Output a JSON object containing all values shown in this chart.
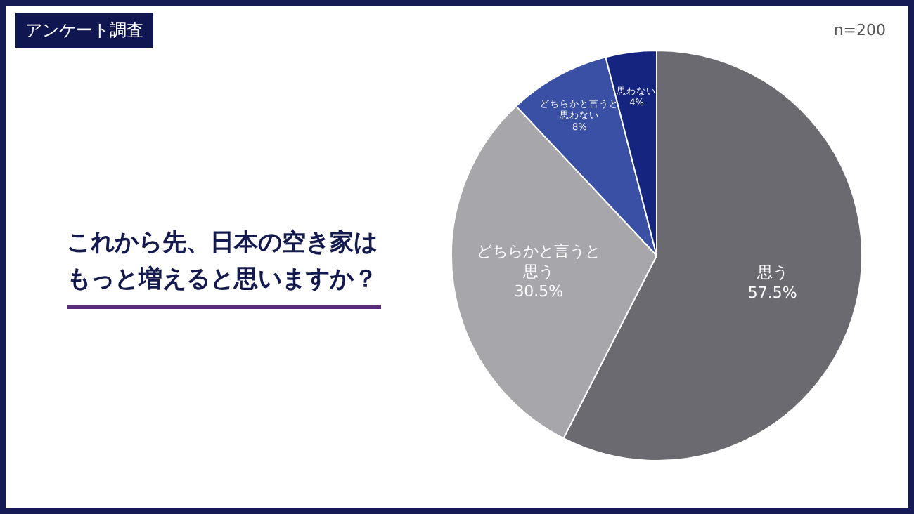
{
  "chart_data": {
    "type": "pie",
    "subtitle": "アンケート調査",
    "title": "これから先、日本の空き家はもっと増えると思いますか？",
    "annotations": [
      "n=200"
    ],
    "categories": [
      "思う",
      "どちらかと言うと思う",
      "どちらかと言うと思わない",
      "思わない"
    ],
    "values": [
      57.5,
      30.5,
      8,
      4
    ],
    "colors": [
      "#6b6a70",
      "#a6a6ab",
      "#3a50a5",
      "#14247f"
    ],
    "value_labels": [
      "57.5%",
      "30.5%",
      "8%",
      "4%"
    ]
  }
}
